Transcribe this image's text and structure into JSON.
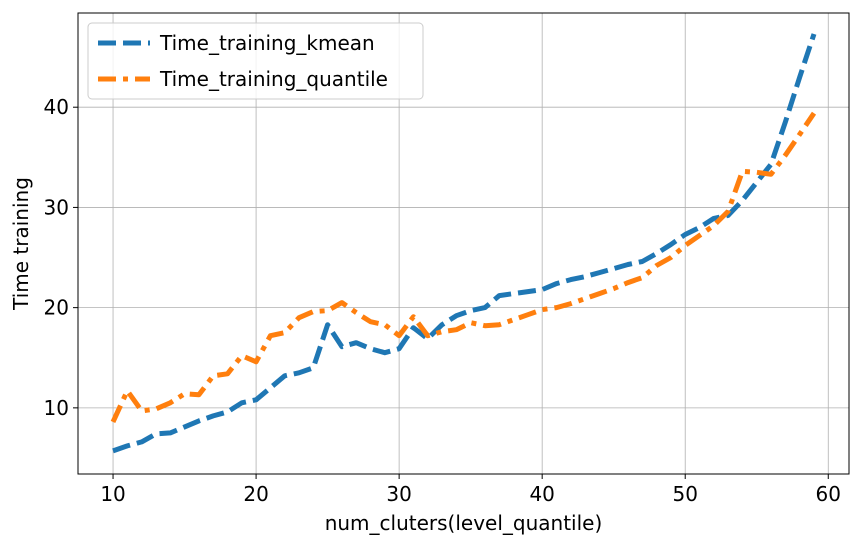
{
  "chart_data": {
    "type": "line",
    "title": "",
    "xlabel": "num_cluters(level_quantile)",
    "ylabel": "Time training",
    "xlim": [
      7.55,
      61.45
    ],
    "ylim": [
      3.4,
      49.4
    ],
    "xticks": [
      10,
      20,
      30,
      40,
      50,
      60
    ],
    "yticks": [
      10,
      20,
      30,
      40
    ],
    "grid": true,
    "legend_position": "top-left",
    "series": [
      {
        "name": "Time_training_kmean",
        "color": "#1f77b4",
        "dash": "dashed",
        "x": [
          10,
          11,
          12,
          13,
          14,
          15,
          16,
          17,
          18,
          19,
          20,
          21,
          22,
          23,
          24,
          25,
          26,
          27,
          28,
          29,
          30,
          31,
          32,
          33,
          34,
          35,
          36,
          37,
          38,
          39,
          40,
          41,
          42,
          43,
          44,
          45,
          46,
          47,
          48,
          49,
          50,
          51,
          52,
          53,
          54,
          55,
          56,
          57,
          58,
          59
        ],
        "y": [
          5.7,
          6.2,
          6.6,
          7.4,
          7.5,
          8.1,
          8.7,
          9.2,
          9.6,
          10.5,
          10.8,
          12.0,
          13.2,
          13.5,
          14.0,
          18.3,
          16.1,
          16.5,
          15.9,
          15.5,
          15.9,
          18.0,
          16.9,
          18.3,
          19.2,
          19.7,
          20.0,
          21.2,
          21.4,
          21.6,
          21.8,
          22.4,
          22.8,
          23.1,
          23.5,
          23.9,
          24.3,
          24.6,
          25.4,
          26.3,
          27.3,
          28.0,
          28.9,
          29.2,
          30.7,
          32.5,
          34.3,
          38.5,
          43.0,
          47.3
        ]
      },
      {
        "name": "Time_training_quantile",
        "color": "#ff7f0e",
        "dash": "dashdot",
        "x": [
          10,
          11,
          12,
          13,
          14,
          15,
          16,
          17,
          18,
          19,
          20,
          21,
          22,
          23,
          24,
          25,
          26,
          27,
          28,
          29,
          30,
          31,
          32,
          33,
          34,
          35,
          36,
          37,
          38,
          39,
          40,
          41,
          42,
          43,
          44,
          45,
          46,
          47,
          48,
          49,
          50,
          51,
          52,
          53,
          54,
          55,
          56,
          57,
          58,
          59
        ],
        "y": [
          8.6,
          11.7,
          9.7,
          9.9,
          10.5,
          11.4,
          11.3,
          13.2,
          13.4,
          15.2,
          14.6,
          17.2,
          17.5,
          19.0,
          19.6,
          19.7,
          20.5,
          19.5,
          18.6,
          18.3,
          17.2,
          19.1,
          17.2,
          17.6,
          17.8,
          18.5,
          18.2,
          18.3,
          18.8,
          19.3,
          19.8,
          20.0,
          20.4,
          20.9,
          21.4,
          21.9,
          22.5,
          23.0,
          24.2,
          25.0,
          26.2,
          27.2,
          28.2,
          29.6,
          33.6,
          33.5,
          33.3,
          35.2,
          37.3,
          39.4
        ]
      }
    ]
  }
}
